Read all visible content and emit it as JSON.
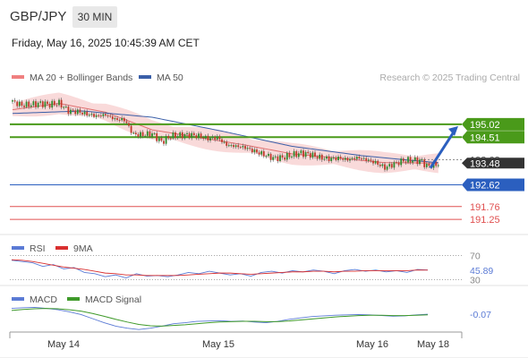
{
  "header": {
    "symbol": "GBP/JPY",
    "timeframe": "30 MIN",
    "datetime": "Friday, May 16, 2025 10:45:39 AM CET"
  },
  "colors": {
    "candle_up": "#2e8b2e",
    "candle_down": "#c0392b",
    "ma50": "#3a5fa8",
    "ma20": "#e07070",
    "bollinger_fill": "#f8d4d4",
    "resistance": "#4a9a1a",
    "pivot": "#2b5fbf",
    "support": "#e05050",
    "last_price": "#333333",
    "rsi": "#5b7bd5",
    "rsi_ma": "#d93030",
    "macd": "#5b7bd5",
    "macd_signal": "#3f9a2a"
  },
  "chart_data": [
    {
      "type": "candlestick",
      "panel": "price",
      "legend": [
        {
          "label": "MA 20 + Bollinger Bands",
          "color": "#f08080"
        },
        {
          "label": "MA 50",
          "color": "#3a5fa8"
        }
      ],
      "watermark": "Research © 2025 Trading Central",
      "x_ticks": [
        "May 14",
        "May 15",
        "May 16",
        "May 18"
      ],
      "ylim": [
        190.9,
        196.4
      ],
      "price_path": [
        [
          0,
          195.92
        ],
        [
          4,
          195.78
        ],
        [
          8,
          195.8
        ],
        [
          12,
          195.85
        ],
        [
          16,
          195.8
        ],
        [
          20,
          195.86
        ],
        [
          24,
          195.55
        ],
        [
          28,
          195.52
        ],
        [
          32,
          195.42
        ],
        [
          36,
          195.35
        ],
        [
          40,
          195.4
        ],
        [
          44,
          195.22
        ],
        [
          48,
          195.2
        ],
        [
          52,
          194.62
        ],
        [
          56,
          194.6
        ],
        [
          60,
          194.65
        ],
        [
          64,
          194.32
        ],
        [
          68,
          194.55
        ],
        [
          72,
          194.58
        ],
        [
          76,
          194.6
        ],
        [
          80,
          194.55
        ],
        [
          84,
          194.45
        ],
        [
          88,
          194.5
        ],
        [
          92,
          194.2
        ],
        [
          96,
          194.15
        ],
        [
          100,
          194.1
        ],
        [
          104,
          193.95
        ],
        [
          108,
          193.82
        ],
        [
          112,
          193.68
        ],
        [
          116,
          193.7
        ],
        [
          120,
          193.8
        ],
        [
          124,
          193.88
        ],
        [
          128,
          193.82
        ],
        [
          132,
          193.7
        ],
        [
          136,
          193.65
        ],
        [
          140,
          193.68
        ],
        [
          144,
          193.62
        ],
        [
          148,
          193.7
        ],
        [
          152,
          193.62
        ],
        [
          156,
          193.5
        ],
        [
          160,
          193.3
        ],
        [
          164,
          193.45
        ],
        [
          168,
          193.58
        ],
        [
          172,
          193.6
        ],
        [
          176,
          193.56
        ],
        [
          178,
          193.35
        ],
        [
          180,
          193.4
        ],
        [
          183,
          193.45
        ]
      ],
      "ma50_path": [
        [
          0,
          195.45
        ],
        [
          30,
          195.55
        ],
        [
          60,
          195.3
        ],
        [
          90,
          194.75
        ],
        [
          120,
          194.15
        ],
        [
          150,
          193.78
        ],
        [
          170,
          193.6
        ],
        [
          183,
          193.5
        ]
      ],
      "ma20_path": [
        [
          0,
          195.6
        ],
        [
          20,
          195.85
        ],
        [
          40,
          195.5
        ],
        [
          60,
          194.8
        ],
        [
          80,
          194.5
        ],
        [
          100,
          194.2
        ],
        [
          120,
          193.85
        ],
        [
          140,
          193.68
        ],
        [
          160,
          193.5
        ],
        [
          183,
          193.48
        ]
      ],
      "levels": [
        {
          "name": "resistance-2",
          "value": 195.02,
          "label": "195.02",
          "type": "resistance"
        },
        {
          "name": "resistance-1",
          "value": 194.51,
          "label": "194.51",
          "type": "resistance"
        },
        {
          "name": "last-price",
          "value": 193.62,
          "label": "193.62",
          "type": "last"
        },
        {
          "name": "last-price-overlap",
          "value": 193.48,
          "label": "193.48",
          "type": "current"
        },
        {
          "name": "pivot",
          "value": 192.62,
          "label": "192.62",
          "type": "pivot"
        },
        {
          "name": "support-1",
          "value": 191.76,
          "label": "191.76",
          "type": "support"
        },
        {
          "name": "support-2",
          "value": 191.25,
          "label": "191.25",
          "type": "support"
        }
      ],
      "arrow": {
        "from_value": 193.5,
        "to_value": 195.02,
        "direction": "up"
      }
    },
    {
      "type": "line",
      "panel": "rsi",
      "legend": [
        {
          "label": "RSI",
          "color": "#5b7bd5"
        },
        {
          "label": "9MA",
          "color": "#d93030"
        }
      ],
      "ylim": [
        25,
        75
      ],
      "y_ticks": [
        {
          "value": 70,
          "label": "70"
        },
        {
          "value": 30,
          "label": "30"
        }
      ],
      "last_value": 45.89,
      "last_label": "45.89",
      "rsi": [
        62,
        60,
        58,
        52,
        55,
        48,
        50,
        42,
        40,
        35,
        38,
        33,
        40,
        36,
        37,
        35,
        38,
        42,
        40,
        44,
        41,
        38,
        40,
        36,
        42,
        44,
        41,
        45,
        43,
        46,
        44,
        40,
        45,
        47,
        44,
        46,
        43,
        45,
        42,
        47,
        46
      ],
      "rsi_ma": [
        63,
        62,
        60,
        57,
        54,
        51,
        49,
        47,
        44,
        41,
        40,
        38,
        38,
        37,
        37,
        37,
        37,
        38,
        39,
        40,
        41,
        41,
        40,
        39,
        40,
        41,
        42,
        43,
        43,
        44,
        44,
        43,
        44,
        44,
        45,
        45,
        45,
        45,
        45,
        46,
        45.9
      ]
    },
    {
      "type": "line",
      "panel": "macd",
      "legend": [
        {
          "label": "MACD",
          "color": "#5b7bd5"
        },
        {
          "label": "MACD Signal",
          "color": "#3f9a2a"
        }
      ],
      "ylim": [
        -0.62,
        0.22
      ],
      "last_value": -0.07,
      "last_label": "-0.07",
      "macd": [
        0.1,
        0.12,
        0.13,
        0.1,
        0.06,
        0.0,
        -0.08,
        -0.2,
        -0.32,
        -0.42,
        -0.48,
        -0.52,
        -0.48,
        -0.42,
        -0.35,
        -0.32,
        -0.28,
        -0.27,
        -0.26,
        -0.28,
        -0.27,
        -0.3,
        -0.32,
        -0.28,
        -0.22,
        -0.18,
        -0.14,
        -0.12,
        -0.1,
        -0.09,
        -0.08,
        -0.09,
        -0.11,
        -0.13,
        -0.12,
        -0.09,
        -0.07
      ],
      "signal": [
        0.04,
        0.07,
        0.09,
        0.1,
        0.09,
        0.06,
        0.02,
        -0.05,
        -0.13,
        -0.22,
        -0.3,
        -0.37,
        -0.41,
        -0.42,
        -0.4,
        -0.38,
        -0.35,
        -0.32,
        -0.3,
        -0.29,
        -0.28,
        -0.28,
        -0.29,
        -0.29,
        -0.27,
        -0.24,
        -0.21,
        -0.18,
        -0.15,
        -0.13,
        -0.11,
        -0.1,
        -0.1,
        -0.11,
        -0.11,
        -0.1,
        -0.09
      ]
    }
  ]
}
